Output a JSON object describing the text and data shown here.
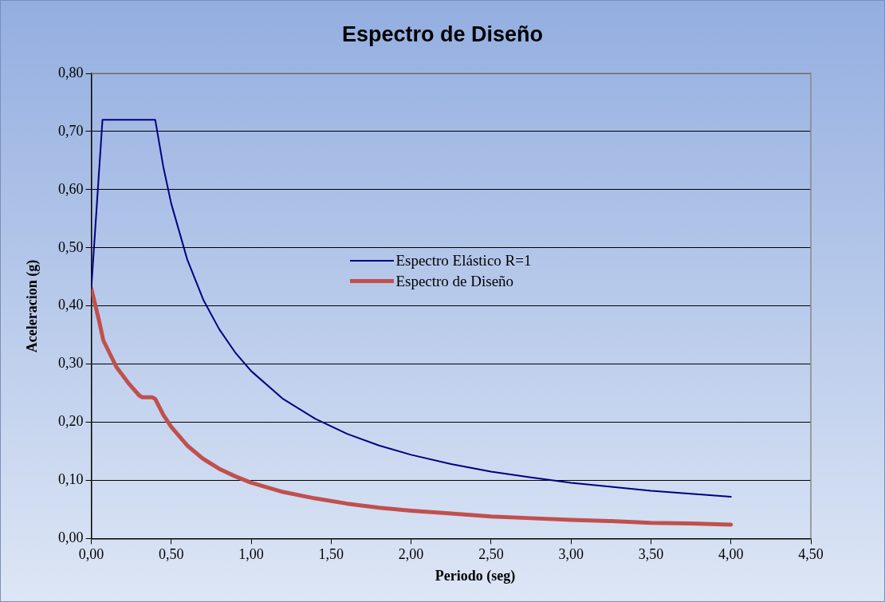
{
  "chart_data": {
    "type": "line",
    "title": "Espectro de Diseño",
    "xlabel": "Periodo (seg)",
    "ylabel": "Aceleracion (g)",
    "series": [
      {
        "name": "Espectro Elástico R=1",
        "color": "#000080",
        "x": [
          0,
          0.07,
          0.4,
          0.45,
          0.5,
          0.6,
          0.7,
          0.8,
          0.9,
          1.0,
          1.2,
          1.4,
          1.6,
          1.8,
          2.0,
          2.25,
          2.5,
          2.75,
          3.0,
          3.25,
          3.5,
          3.75,
          4.0
        ],
        "values": [
          0.43,
          0.72,
          0.72,
          0.64,
          0.576,
          0.48,
          0.411,
          0.36,
          0.32,
          0.288,
          0.24,
          0.206,
          0.18,
          0.16,
          0.144,
          0.128,
          0.115,
          0.105,
          0.096,
          0.089,
          0.082,
          0.077,
          0.072
        ]
      },
      {
        "name": "Espectro de Diseño",
        "color": "#c0504d",
        "x": [
          0,
          0.05,
          0.075,
          0.157,
          0.239,
          0.3,
          0.32,
          0.38,
          0.4,
          0.45,
          0.5,
          0.6,
          0.7,
          0.8,
          0.9,
          1.0,
          1.2,
          1.4,
          1.6,
          1.8,
          2.0,
          2.25,
          2.5,
          2.75,
          3.0,
          3.25,
          3.5,
          3.75,
          4.0
        ],
        "values": [
          0.43,
          0.373,
          0.341,
          0.295,
          0.265,
          0.246,
          0.243,
          0.243,
          0.24,
          0.213,
          0.192,
          0.16,
          0.137,
          0.12,
          0.107,
          0.096,
          0.08,
          0.069,
          0.06,
          0.053,
          0.048,
          0.043,
          0.038,
          0.035,
          0.032,
          0.03,
          0.027,
          0.026,
          0.024
        ]
      }
    ],
    "xlim": [
      0,
      4.5
    ],
    "xticks": [
      {
        "value": 0,
        "label": "0,00"
      },
      {
        "value": 0.5,
        "label": "0,50"
      },
      {
        "value": 1,
        "label": "1,00"
      },
      {
        "value": 1.5,
        "label": "1,50"
      },
      {
        "value": 2,
        "label": "2,00"
      },
      {
        "value": 2.5,
        "label": "2,50"
      },
      {
        "value": 3,
        "label": "3,00"
      },
      {
        "value": 3.5,
        "label": "3,50"
      },
      {
        "value": 4,
        "label": "4,00"
      },
      {
        "value": 4.5,
        "label": "4,50"
      }
    ],
    "ylim": [
      0,
      0.8
    ],
    "yticks": [
      {
        "value": 0,
        "label": "0,00"
      },
      {
        "value": 0.1,
        "label": "0,10"
      },
      {
        "value": 0.2,
        "label": "0,20"
      },
      {
        "value": 0.3,
        "label": "0,30"
      },
      {
        "value": 0.4,
        "label": "0,40"
      },
      {
        "value": 0.5,
        "label": "0,50"
      },
      {
        "value": 0.6,
        "label": "0,60"
      },
      {
        "value": 0.7,
        "label": "0,70"
      },
      {
        "value": 0.8,
        "label": "0,80"
      }
    ],
    "grid": "y",
    "legend": "center",
    "marker": "none",
    "line_style": "solid"
  }
}
